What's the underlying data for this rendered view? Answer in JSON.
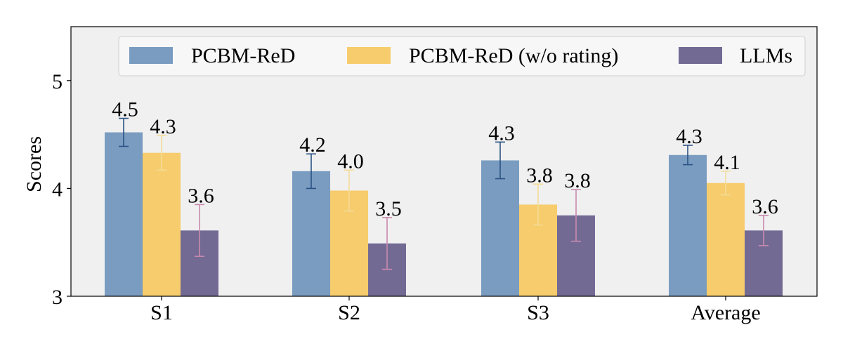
{
  "chart_data": {
    "type": "bar",
    "title": "",
    "xlabel": "",
    "ylabel": "Scores",
    "ylim": [
      3.0,
      5.5
    ],
    "yticks": [
      "3",
      "4",
      "5"
    ],
    "grid": false,
    "legend_position": "top",
    "categories": [
      "S1",
      "S2",
      "S3",
      "Average"
    ],
    "series": [
      {
        "name": "PCBM-ReD",
        "color": "#7a9cc0",
        "error_color": "#2a5283",
        "values": [
          4.52,
          4.16,
          4.26,
          4.31
        ],
        "errors": [
          0.13,
          0.16,
          0.17,
          0.09
        ],
        "labels": [
          "4.5",
          "4.2",
          "4.3",
          "4.3"
        ]
      },
      {
        "name": "PCBM-ReD (w/o rating)",
        "color": "#f6cc6c",
        "error_color": "#f4dc98",
        "values": [
          4.33,
          3.98,
          3.85,
          4.05
        ],
        "errors": [
          0.16,
          0.19,
          0.19,
          0.11
        ],
        "labels": [
          "4.3",
          "4.0",
          "3.8",
          "4.1"
        ]
      },
      {
        "name": "LLMs",
        "color": "#736a94",
        "error_color": "#c98aae",
        "values": [
          3.61,
          3.49,
          3.75,
          3.61
        ],
        "errors": [
          0.24,
          0.24,
          0.24,
          0.14
        ],
        "labels": [
          "3.6",
          "3.5",
          "3.8",
          "3.6"
        ]
      }
    ]
  }
}
